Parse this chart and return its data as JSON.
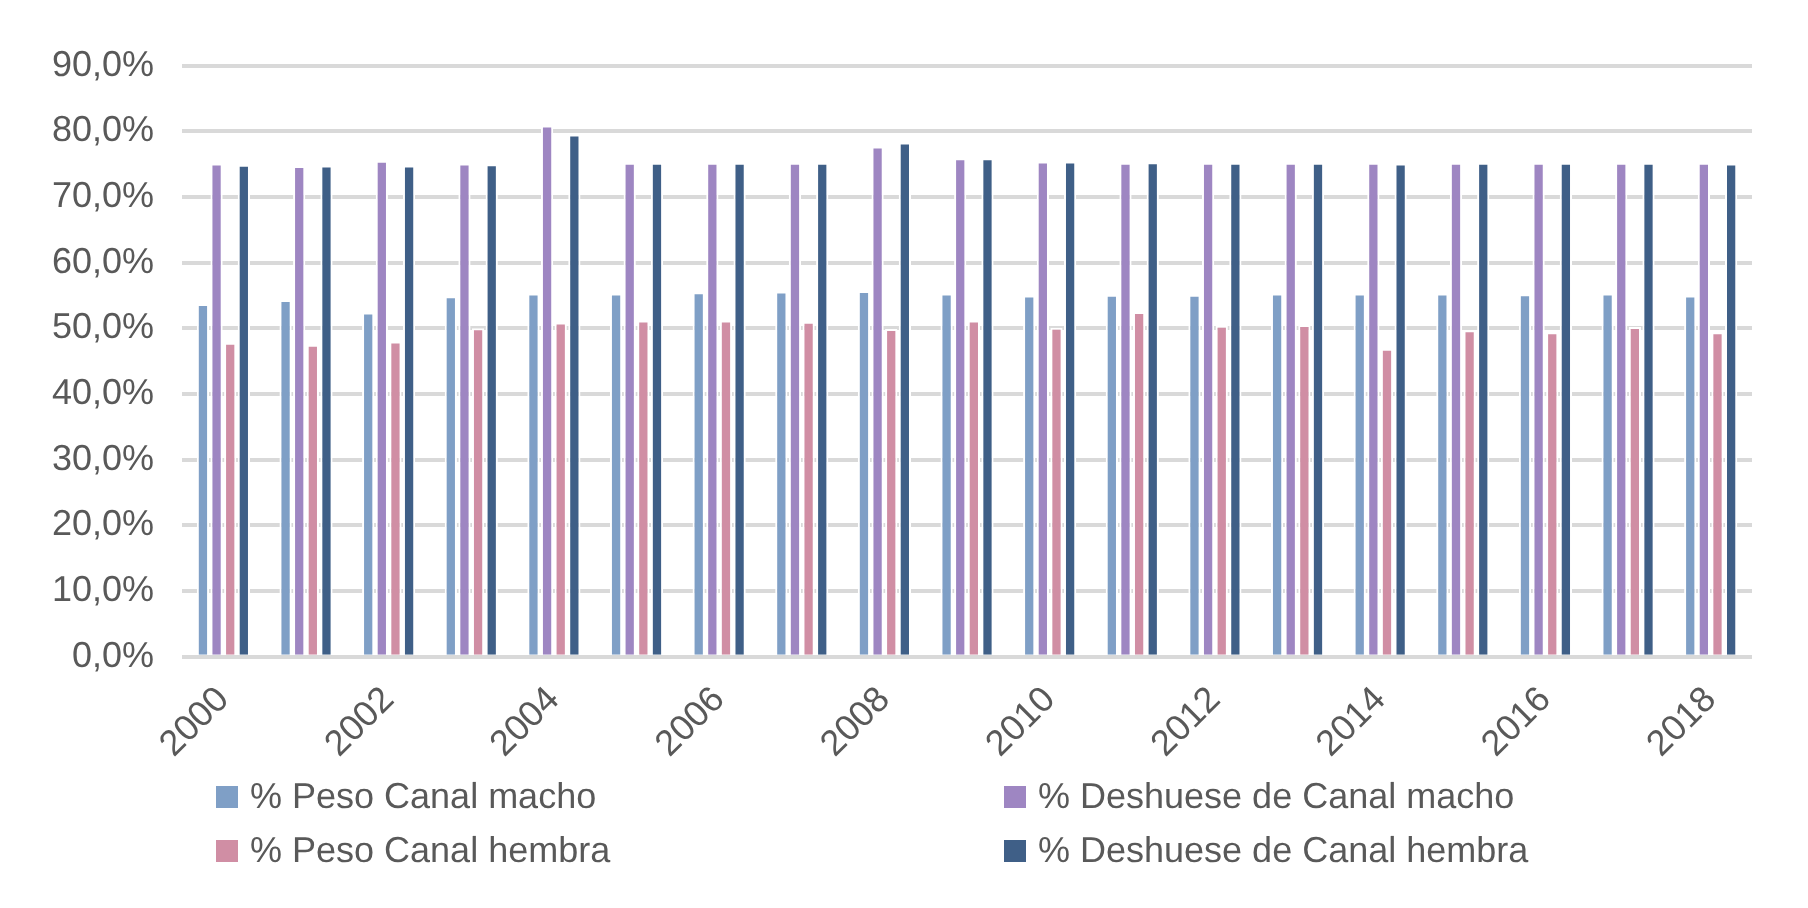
{
  "chart_data": {
    "type": "bar",
    "categories": [
      "2000",
      null,
      "2002",
      null,
      "2004",
      null,
      "2006",
      null,
      "2008",
      null,
      "2010",
      null,
      "2012",
      null,
      "2014",
      null,
      "2016",
      null,
      "2018"
    ],
    "series": [
      {
        "name": "% Peso Canal macho",
        "color": "#7f9fc6",
        "values": [
          53.7,
          54.3,
          52.4,
          54.9,
          55.3,
          55.3,
          55.5,
          55.6,
          55.7,
          55.3,
          55.0,
          55.1,
          55.1,
          55.3,
          55.3,
          55.3,
          55.2,
          55.3,
          55.0
        ]
      },
      {
        "name": "% Deshuese de Canal macho",
        "color": "#9e86c2",
        "values": [
          75.1,
          74.7,
          75.5,
          75.1,
          80.9,
          75.2,
          75.2,
          75.2,
          77.7,
          75.9,
          75.4,
          75.2,
          75.2,
          75.2,
          75.2,
          75.2,
          75.2,
          75.2,
          75.2
        ]
      },
      {
        "name": "% Peso Canal hembra",
        "color": "#d08ea4",
        "values": [
          47.8,
          47.5,
          48.0,
          50.0,
          50.9,
          51.2,
          51.2,
          51.0,
          49.9,
          51.2,
          50.1,
          52.5,
          50.4,
          50.5,
          46.9,
          49.7,
          49.4,
          50.2,
          49.4
        ]
      },
      {
        "name": "% Deshuese de Canal hembra",
        "color": "#3f5f87",
        "values": [
          74.9,
          74.8,
          74.8,
          75.0,
          79.5,
          75.2,
          75.2,
          75.2,
          78.3,
          75.9,
          75.4,
          75.3,
          75.2,
          75.2,
          75.1,
          75.2,
          75.2,
          75.2,
          75.1
        ]
      }
    ],
    "ylim": [
      0,
      90
    ],
    "yticks": [
      {
        "value": 0,
        "label": "0,0%"
      },
      {
        "value": 10,
        "label": "10,0%"
      },
      {
        "value": 20,
        "label": "20,0%"
      },
      {
        "value": 30,
        "label": "30,0%"
      },
      {
        "value": 40,
        "label": "40,0%"
      },
      {
        "value": 50,
        "label": "50,0%"
      },
      {
        "value": 60,
        "label": "60,0%"
      },
      {
        "value": 70,
        "label": "70,0%"
      },
      {
        "value": 80,
        "label": "80,0%"
      },
      {
        "value": 90,
        "label": "90,0%"
      }
    ],
    "grid": "y",
    "legend": "bottom"
  }
}
